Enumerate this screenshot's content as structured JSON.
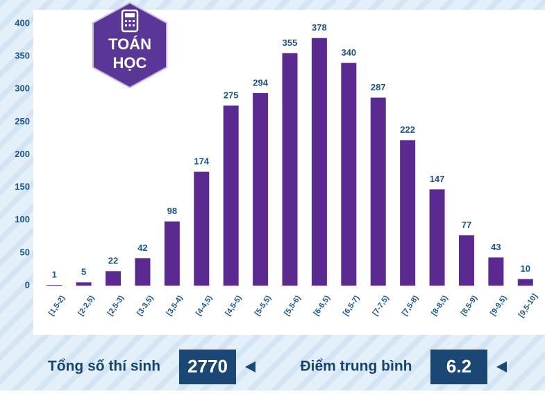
{
  "chart_data": {
    "type": "bar",
    "categories": [
      "[1,5-2)",
      "[2-2,5)",
      "[2,5-3)",
      "[3-3,5)",
      "[3,5-4)",
      "[4-4,5)",
      "[4,5-5)",
      "[5-5,5)",
      "[5,5-6)",
      "[6-6,5)",
      "[6,5-7)",
      "[7-7,5)",
      "[7,5-8)",
      "[8-8,5)",
      "[8,5-9)",
      "[9-9,5)",
      "[9,5-10]"
    ],
    "values": [
      1,
      5,
      22,
      42,
      98,
      174,
      275,
      294,
      355,
      378,
      340,
      287,
      222,
      147,
      77,
      43,
      10
    ],
    "color": "#5b2a91",
    "ylim": [
      0,
      400
    ],
    "yticks": [
      0,
      50,
      100,
      150,
      200,
      250,
      300,
      350,
      400
    ]
  },
  "badge": {
    "lines": [
      "TOÁN",
      "HỌC"
    ]
  },
  "summary": [
    {
      "label": "Tổng số thí sinh",
      "value": 2770
    },
    {
      "label": "Điểm trung bình",
      "value": 6.2
    }
  ]
}
